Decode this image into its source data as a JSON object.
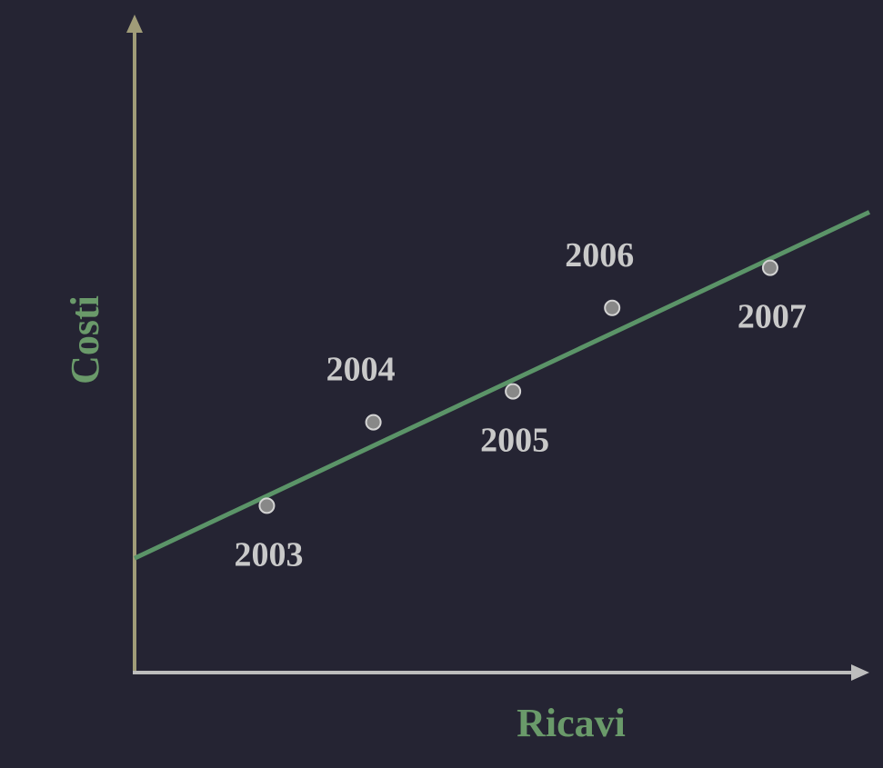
{
  "chart_data": {
    "type": "scatter",
    "xlabel": "Ricavi",
    "ylabel": "Costi",
    "xlim": [
      0,
      10
    ],
    "ylim": [
      0,
      10
    ],
    "grid": false,
    "points": [
      {
        "label": "2003",
        "x": 1.8,
        "y": 2.7
      },
      {
        "label": "2004",
        "x": 3.25,
        "y": 4.05
      },
      {
        "label": "2005",
        "x": 5.15,
        "y": 4.55
      },
      {
        "label": "2006",
        "x": 6.5,
        "y": 5.9
      },
      {
        "label": "2007",
        "x": 8.65,
        "y": 6.55
      }
    ],
    "trendline": {
      "x": [
        0,
        10
      ],
      "y": [
        1.85,
        7.45
      ]
    }
  },
  "colors": {
    "background": "#252433",
    "y_axis": "#a09c78",
    "x_axis": "#bdbdbd",
    "trendline": "#5b9468",
    "point_fill": "#888888",
    "point_stroke": "#d4d4d4",
    "point_label": "#c9c9c9",
    "axis_title": "#6a9a6a"
  }
}
